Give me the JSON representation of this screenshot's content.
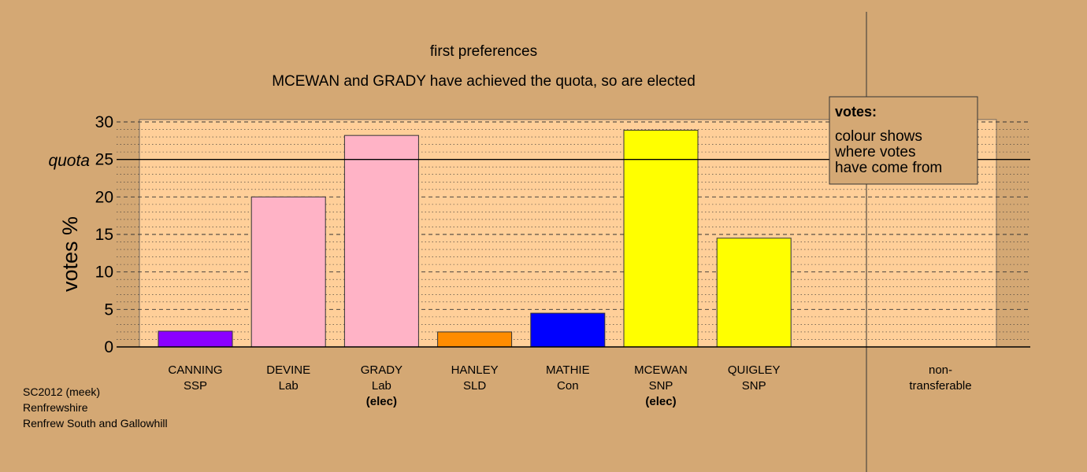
{
  "chart_data": {
    "type": "bar",
    "title": "first preferences",
    "subtitle": "MCEWAN and GRADY have achieved the quota, so are elected",
    "ylabel": "votes %",
    "ylim": [
      0,
      30
    ],
    "yticks": [
      "0",
      "5",
      "10",
      "15",
      "20",
      "25",
      "30"
    ],
    "quota": {
      "value": 25,
      "label": "quota"
    },
    "categories": [
      {
        "name": "CANNING",
        "party": "SSP",
        "note": "",
        "value": 2.1,
        "color": "#8b00ff"
      },
      {
        "name": "DEVINE",
        "party": "Lab",
        "note": "",
        "value": 20.0,
        "color": "#ffb3c6"
      },
      {
        "name": "GRADY",
        "party": "Lab",
        "note": "(elec)",
        "value": 28.2,
        "color": "#ffb3c6"
      },
      {
        "name": "HANLEY",
        "party": "SLD",
        "note": "",
        "value": 2.0,
        "color": "#ff8c00"
      },
      {
        "name": "MATHIE",
        "party": "Con",
        "note": "",
        "value": 4.5,
        "color": "#0000ff"
      },
      {
        "name": "MCEWAN",
        "party": "SNP",
        "note": "(elec)",
        "value": 28.9,
        "color": "#ffff00"
      },
      {
        "name": "QUIGLEY",
        "party": "SNP",
        "note": "",
        "value": 14.5,
        "color": "#ffff00"
      }
    ],
    "nontransferable": {
      "label_line1": "non-",
      "label_line2": "transferable",
      "value": 0
    },
    "legend": {
      "title": "votes:",
      "lines": [
        "colour shows",
        "where votes",
        "have come from"
      ],
      "placement": "top-right"
    },
    "grid": true,
    "colors": {
      "background": "#d4a874",
      "plot_area": "#ffcf99"
    }
  },
  "footer": {
    "line1": "SC2012 (meek)",
    "line2": "Renfrewshire",
    "line3": "Renfrew South and Gallowhill"
  }
}
